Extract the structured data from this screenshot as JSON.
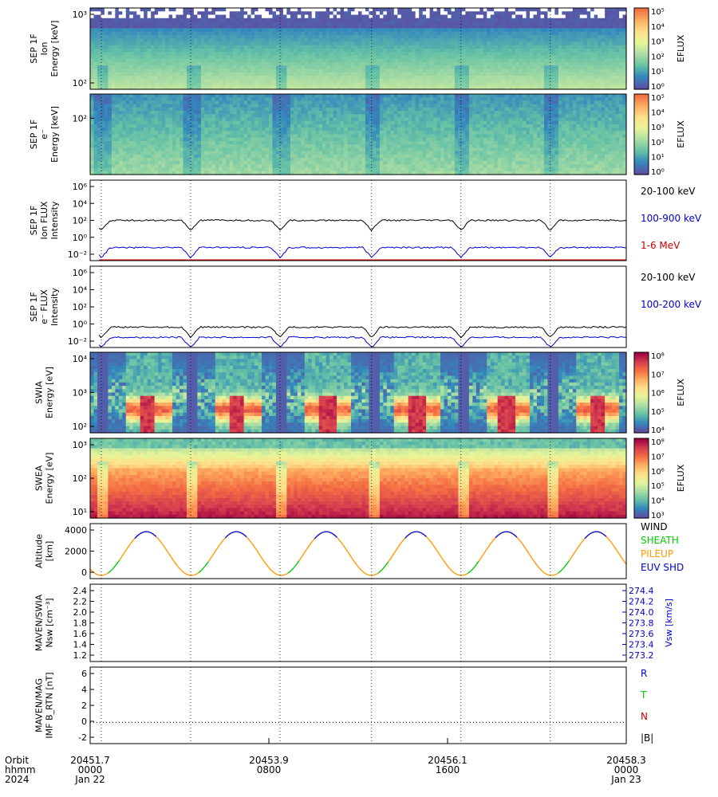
{
  "panels": [
    {
      "id": "sep_ion_spec",
      "kind": "spectrogram",
      "ylabel": [
        "SEP 1F",
        "Ion",
        "Energy [keV]"
      ],
      "yticks": [
        "10³",
        "10²"
      ],
      "cbar_label": "EFLUX",
      "cbar_ticks": [
        "10⁵",
        "10⁴",
        "10³",
        "10²",
        "10¹",
        "10⁰"
      ],
      "palette": "sep"
    },
    {
      "id": "sep_e_spec",
      "kind": "spectrogram",
      "ylabel": [
        "SEP 1F",
        "e⁻",
        "Energy [keV]"
      ],
      "yticks": [
        "10²"
      ],
      "cbar_label": "EFLUX",
      "cbar_ticks": [
        "10⁵",
        "10⁴",
        "10³",
        "10²",
        "10¹",
        "10⁰"
      ],
      "palette": "sep"
    },
    {
      "id": "sep_ion_flux",
      "kind": "lines",
      "ylabel": [
        "SEP 1F",
        "Ion FLUX",
        "Intensity"
      ],
      "yticks": [
        "10⁶",
        "10⁴",
        "10²",
        "10⁰",
        "10⁻²"
      ],
      "legend": [
        {
          "label": "20-100 keV",
          "color": "#000000"
        },
        {
          "label": "100-900 keV",
          "color": "#0000cc"
        },
        {
          "label": "1-6 MeV",
          "color": "#cc0000"
        }
      ]
    },
    {
      "id": "sep_e_flux",
      "kind": "lines",
      "ylabel": [
        "SEP 1F",
        "e⁻ FLUX",
        "Intensity"
      ],
      "yticks": [
        "10⁶",
        "10⁴",
        "10²",
        "10⁰",
        "10⁻²"
      ],
      "legend": [
        {
          "label": "20-100 keV",
          "color": "#000000"
        },
        {
          "label": "100-200 keV",
          "color": "#0000cc"
        }
      ]
    },
    {
      "id": "swia_spec",
      "kind": "spectrogram",
      "ylabel": [
        "SWIA",
        "Energy [eV]"
      ],
      "yticks": [
        "10⁴",
        "10³",
        "10²"
      ],
      "cbar_label": "EFLUX",
      "cbar_ticks": [
        "10⁸",
        "10⁷",
        "10⁶",
        "10⁵",
        "10⁴"
      ],
      "palette": "spectral"
    },
    {
      "id": "swea_spec",
      "kind": "spectrogram",
      "ylabel": [
        "SWEA",
        "Energy [eV]"
      ],
      "yticks": [
        "10³",
        "10²",
        "10¹"
      ],
      "cbar_label": "EFLUX",
      "cbar_ticks": [
        "10⁸",
        "10⁷",
        "10⁶",
        "10⁵",
        "10⁴",
        "10³"
      ],
      "palette": "spectral"
    },
    {
      "id": "altitude",
      "kind": "altitude",
      "ylabel": [
        "Altitude",
        "[km]"
      ],
      "yticks": [
        "4000",
        "2000",
        "0"
      ],
      "legend": [
        {
          "label": "WIND",
          "color": "#000000"
        },
        {
          "label": "SHEATH",
          "color": "#00cc00"
        },
        {
          "label": "PILEUP",
          "color": "#ff9900"
        },
        {
          "label": "EUV SHD",
          "color": "#0000cc"
        }
      ]
    },
    {
      "id": "swia_moments",
      "kind": "empty",
      "ylabel": [
        "MAVEN/SWIA",
        "Nsw [cm⁻³]"
      ],
      "yticks": [
        "2.4",
        "2.2",
        "2.0",
        "1.8",
        "1.6",
        "1.4",
        "1.2"
      ],
      "right_label": "Vsw [km/s]",
      "right_ticks": [
        "274.4",
        "274.2",
        "274.0",
        "273.8",
        "273.6",
        "273.4",
        "273.2"
      ]
    },
    {
      "id": "mag",
      "kind": "empty",
      "ylabel": [
        "MAVEN/MAG",
        "IMF B_RTN [nT]"
      ],
      "yticks": [
        "6",
        "4",
        "2",
        "0",
        "-2"
      ],
      "legend": [
        {
          "label": "R",
          "color": "#0000cc"
        },
        {
          "label": "T",
          "color": "#00cc00"
        },
        {
          "label": "N",
          "color": "#cc0000"
        },
        {
          "label": "|B|",
          "color": "#000000"
        }
      ]
    }
  ],
  "time_axis": {
    "row_labels": [
      "Orbit",
      "hhmm",
      "2024"
    ],
    "ticks": [
      {
        "orbit": "20451.7",
        "hhmm": "0000",
        "date": "Jan 22"
      },
      {
        "orbit": "20453.9",
        "hhmm": "0800",
        "date": ""
      },
      {
        "orbit": "20456.1",
        "hhmm": "1600",
        "date": ""
      },
      {
        "orbit": "20458.3",
        "hhmm": "0000",
        "date": "Jan 23"
      }
    ]
  },
  "chart_data": {
    "type": "line",
    "x_axis": {
      "unit": "hours since 2024-01-22 00:00",
      "range": [
        0,
        24
      ],
      "tick_hours": [
        0,
        8,
        16,
        24
      ]
    },
    "periapsis_hours": [
      0.5,
      4.5,
      8.5,
      12.6,
      16.6,
      20.6
    ],
    "altitude": {
      "ylim": [
        0,
        5000
      ],
      "period_hours": 4.03,
      "max_km": 4500,
      "min_km": 0
    },
    "sep_ion_flux": {
      "series": [
        {
          "name": "20-100 keV",
          "level_log10": 2.0
        },
        {
          "name": "100-900 keV",
          "level_log10": -0.7
        },
        {
          "name": "1-6 MeV",
          "level_log10": -3.0
        }
      ]
    },
    "sep_e_flux": {
      "series": [
        {
          "name": "20-100 keV",
          "level_log10": 0.0
        },
        {
          "name": "100-200 keV",
          "level_log10": -1.0
        }
      ]
    },
    "mag": {
      "ylim": [
        -2.5,
        6.5
      ],
      "zero_line": 0
    },
    "swia_moments": {
      "ylim": [
        1.15,
        2.45
      ],
      "right_ylim": [
        273.15,
        274.45
      ]
    }
  }
}
